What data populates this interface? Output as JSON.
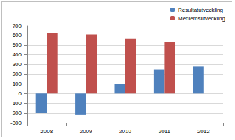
{
  "chart_data": {
    "type": "bar",
    "categories": [
      "2008",
      "2009",
      "2010",
      "2011",
      "2012"
    ],
    "series": [
      {
        "name": "Resultatutveckling",
        "color": "#4f81bd",
        "values": [
          -200,
          -220,
          100,
          250,
          280
        ]
      },
      {
        "name": "Medlemsutveckling",
        "color": "#c0504d",
        "values": [
          620,
          610,
          565,
          530,
          null
        ]
      }
    ],
    "ylim": [
      -300,
      700
    ],
    "yticks": [
      -300,
      -200,
      -100,
      0,
      100,
      200,
      300,
      400,
      500,
      600,
      700
    ],
    "grid": true,
    "legend": "upper right"
  }
}
